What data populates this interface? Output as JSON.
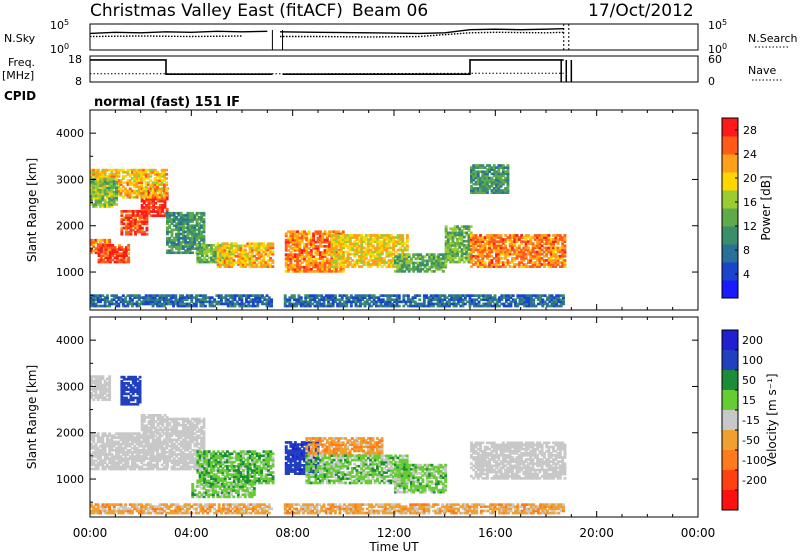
{
  "header": {
    "title": "Christmas Valley East (fitACF)",
    "beam": "Beam 06",
    "date": "17/Oct/2012"
  },
  "colors": {
    "power_scale": [
      "#1a1aff",
      "#1a44cc",
      "#2a6f9a",
      "#3a8f6a",
      "#5faa4a",
      "#9acd32",
      "#ffd700",
      "#ff9f1a",
      "#ff5a1a",
      "#ff1a1a"
    ],
    "velocity_scale": [
      "#2020d0",
      "#2040c0",
      "#1a8c3a",
      "#66cc33",
      "#c8c8c8",
      "#f0a030",
      "#ff7a1a",
      "#ff4010",
      "#ff1010"
    ],
    "ground_scatter": "#c8c8c8"
  },
  "chart_data": [
    {
      "type": "line",
      "panel": "noise",
      "left_label": "N.Sky",
      "right_label": "N.Search",
      "left_ticks": [
        "10^5",
        "10^0"
      ],
      "right_ticks": [
        "10^5",
        "10^0"
      ],
      "series": [
        {
          "name": "N.Sky",
          "style": "solid",
          "x": [
            0,
            1,
            2,
            3,
            4,
            5,
            6,
            7,
            7.5,
            9,
            11,
            13,
            14,
            15,
            16,
            17,
            18,
            18.7
          ],
          "y": [
            3.2,
            3.4,
            3.3,
            3.5,
            3.4,
            3.6,
            3.5,
            3.6,
            3.5,
            3.4,
            3.3,
            3.2,
            3.3,
            3.9,
            4.0,
            3.9,
            4.0,
            4.1
          ]
        },
        {
          "name": "N.Search",
          "style": "dotted",
          "x": [
            0,
            2,
            4,
            6,
            7.5,
            9,
            11,
            13,
            15,
            16,
            18,
            18.7
          ],
          "y": [
            2.6,
            2.7,
            2.6,
            2.7,
            2.6,
            2.6,
            2.5,
            2.6,
            3.3,
            3.4,
            3.3,
            3.4
          ]
        }
      ]
    },
    {
      "type": "line",
      "panel": "frequency",
      "left_label": "Freq.",
      "left_unit": "[MHz]",
      "right_label": "Nave",
      "left_ticks": [
        "18",
        "8"
      ],
      "right_ticks": [
        "60",
        "0"
      ],
      "series": [
        {
          "name": "Freq.",
          "style": "solid",
          "x": [
            0,
            3,
            3,
            7.2,
            7.6,
            15,
            15,
            18.7
          ],
          "y": [
            16.5,
            16.5,
            11,
            11,
            11,
            11,
            16.5,
            16.5
          ]
        },
        {
          "name": "Nave",
          "style": "dotted",
          "x": [
            0,
            3,
            7.2,
            7.6,
            15,
            18.7
          ],
          "y": [
            19,
            19,
            19,
            19,
            20,
            20
          ]
        }
      ]
    },
    {
      "type": "text",
      "panel": "cpid",
      "label": "CPID",
      "value": "normal (fast) 151 IF"
    },
    {
      "type": "heatmap",
      "panel": "power",
      "ylabel": "Slant Range [km]",
      "yticks": [
        1000,
        2000,
        3000,
        4000
      ],
      "ylim": [
        180,
        4500
      ],
      "xlim": [
        0,
        24
      ],
      "colorbar_label": "Power [dB]",
      "colorbar_ticks": [
        4,
        8,
        12,
        16,
        20,
        24,
        28
      ],
      "colorbar_range": [
        0,
        30
      ],
      "regions": [
        {
          "t0": 0.0,
          "t1": 0.8,
          "r0": 1400,
          "r1": 1700,
          "v": 24
        },
        {
          "t0": 0.3,
          "t1": 1.5,
          "r0": 1200,
          "r1": 1600,
          "v": 27
        },
        {
          "t0": 1.2,
          "t1": 2.2,
          "r0": 1800,
          "r1": 2300,
          "v": 27
        },
        {
          "t0": 2.0,
          "t1": 3.0,
          "r0": 2200,
          "r1": 2800,
          "v": 28
        },
        {
          "t0": 0.0,
          "t1": 3.0,
          "r0": 2600,
          "r1": 3200,
          "v": 21
        },
        {
          "t0": 0.0,
          "t1": 1.0,
          "r0": 2400,
          "r1": 3000,
          "v": 15
        },
        {
          "t0": 3.0,
          "t1": 4.5,
          "r0": 1400,
          "r1": 2300,
          "v": 11
        },
        {
          "t0": 4.2,
          "t1": 5.5,
          "r0": 1200,
          "r1": 1600,
          "v": 14
        },
        {
          "t0": 5.0,
          "t1": 7.2,
          "r0": 1100,
          "r1": 1600,
          "v": 21
        },
        {
          "t0": 7.6,
          "t1": 10.0,
          "r0": 1000,
          "r1": 1900,
          "v": 24
        },
        {
          "t0": 9.5,
          "t1": 12.5,
          "r0": 1100,
          "r1": 1800,
          "v": 20
        },
        {
          "t0": 12.0,
          "t1": 14.0,
          "r0": 1000,
          "r1": 1400,
          "v": 13
        },
        {
          "t0": 14.0,
          "t1": 15.0,
          "r0": 1200,
          "r1": 2000,
          "v": 14
        },
        {
          "t0": 15.0,
          "t1": 18.7,
          "r0": 1100,
          "r1": 1800,
          "v": 24
        },
        {
          "t0": 15.0,
          "t1": 16.5,
          "r0": 2700,
          "r1": 3300,
          "v": 11
        },
        {
          "t0": 0.0,
          "t1": 18.7,
          "r0": 250,
          "r1": 500,
          "v": 7
        }
      ]
    },
    {
      "type": "heatmap",
      "panel": "velocity",
      "ylabel": "Slant Range [km]",
      "xlabel": "Time UT",
      "xticks": [
        "00:00",
        "04:00",
        "08:00",
        "12:00",
        "16:00",
        "20:00",
        "00:00"
      ],
      "xtick_values": [
        0,
        4,
        8,
        12,
        16,
        20,
        24
      ],
      "yticks": [
        1000,
        2000,
        3000,
        4000
      ],
      "ylim": [
        180,
        4500
      ],
      "xlim": [
        0,
        24
      ],
      "colorbar_label": "Velocity [m s⁻¹]",
      "colorbar_ticks": [
        "200",
        "100",
        "50",
        "15",
        "-15",
        "-50",
        "-100",
        "-200"
      ],
      "regions": [
        {
          "t0": 0.0,
          "t1": 3.0,
          "r0": 1200,
          "r1": 2000,
          "v": 0
        },
        {
          "t0": 2.0,
          "t1": 3.0,
          "r0": 2000,
          "r1": 2400,
          "v": 0
        },
        {
          "t0": 0.0,
          "t1": 0.8,
          "r0": 2700,
          "r1": 3200,
          "v": 0
        },
        {
          "t0": 1.2,
          "t1": 2.0,
          "r0": 2600,
          "r1": 3200,
          "v": 150
        },
        {
          "t0": 3.0,
          "t1": 4.5,
          "r0": 1200,
          "r1": 2300,
          "v": 0
        },
        {
          "t0": 4.2,
          "t1": 7.2,
          "r0": 900,
          "r1": 1600,
          "v": 40
        },
        {
          "t0": 4.0,
          "t1": 6.5,
          "r0": 600,
          "r1": 900,
          "v": 30
        },
        {
          "t0": 7.6,
          "t1": 9.0,
          "r0": 1100,
          "r1": 1800,
          "v": 180
        },
        {
          "t0": 8.5,
          "t1": 11.5,
          "r0": 1500,
          "r1": 1900,
          "v": -40
        },
        {
          "t0": 8.5,
          "t1": 12.5,
          "r0": 900,
          "r1": 1500,
          "v": 30
        },
        {
          "t0": 12.0,
          "t1": 14.0,
          "r0": 700,
          "r1": 1300,
          "v": 30
        },
        {
          "t0": 15.0,
          "t1": 18.7,
          "r0": 1000,
          "r1": 1800,
          "v": 0
        },
        {
          "t0": 0.0,
          "t1": 18.7,
          "r0": 250,
          "r1": 450,
          "v": -30
        }
      ]
    }
  ]
}
